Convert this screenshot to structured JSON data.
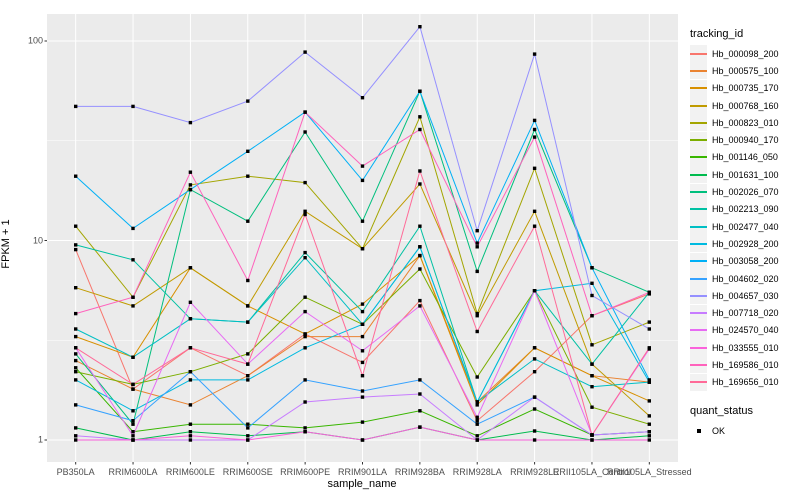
{
  "figure": {
    "background": "#FFFFFF",
    "panel_background": "#EBEBEB",
    "grid_color": "#FFFFFF",
    "tick_color": "#333333",
    "tick_label_color": "#4D4D4D"
  },
  "axes": {
    "y": {
      "title": "FPKM + 1",
      "scale": "log10",
      "tick_labels": [
        "100",
        "10",
        "1"
      ],
      "tick_values": [
        100,
        10,
        1
      ],
      "minor_tick_values": [
        31.62,
        3.162
      ]
    },
    "x": {
      "title": "sample_name"
    }
  },
  "legend": {
    "tracking_id_title": "tracking_id",
    "quant_status_title": "quant_status",
    "quant_status_items": [
      {
        "label": "OK",
        "marker": "black-square"
      }
    ]
  },
  "chart_data": {
    "type": "line",
    "title": "",
    "xlabel": "sample_name",
    "ylabel": "FPKM + 1",
    "y_scale": "log10",
    "ylim": [
      1,
      130
    ],
    "grid": "on",
    "legend_position": "right",
    "point_marker": {
      "shape": "square",
      "color": "#000000"
    },
    "x_categories": [
      "PB350LA",
      "RRIM600LA",
      "RRIM600LE",
      "RRIM600SE",
      "RRIM600PE",
      "RRIM901LA",
      "RRIM928BA",
      "RRIM928LA",
      "RRIM928LE",
      "RRII105LA_Control",
      "RRII105LA_Stressed"
    ],
    "series": [
      {
        "name": "Hb_000098_200",
        "color": "#F8766D",
        "values": [
          9.0,
          1.8,
          2.9,
          2.1,
          3.4,
          2.45,
          5.0,
          1.25,
          2.2,
          4.2,
          5.4
        ]
      },
      {
        "name": "Hb_000575_100",
        "color": "#EA8331",
        "values": [
          2.5,
          1.8,
          1.5,
          2.1,
          3.3,
          3.3,
          8.4,
          1.55,
          2.9,
          2.1,
          1.95
        ]
      },
      {
        "name": "Hb_000735_170",
        "color": "#D89000",
        "values": [
          3.3,
          2.6,
          7.3,
          4.7,
          3.4,
          4.8,
          8.4,
          1.5,
          2.9,
          2.1,
          1.57
        ]
      },
      {
        "name": "Hb_000768_160",
        "color": "#C09B00",
        "values": [
          5.8,
          4.7,
          7.3,
          4.7,
          14.0,
          9.1,
          19.2,
          4.2,
          14.0,
          2.4,
          1.32
        ]
      },
      {
        "name": "Hb_000823_010",
        "color": "#A3A500",
        "values": [
          11.8,
          5.2,
          19.0,
          21.0,
          19.5,
          9.1,
          41.7,
          4.3,
          23.0,
          3.0,
          3.9
        ]
      },
      {
        "name": "Hb_000940_170",
        "color": "#7CAE00",
        "values": [
          2.2,
          1.9,
          2.2,
          2.7,
          5.2,
          3.8,
          7.2,
          2.07,
          5.6,
          1.46,
          1.2
        ]
      },
      {
        "name": "Hb_001146_050",
        "color": "#39B600",
        "values": [
          2.3,
          1.1,
          1.2,
          1.2,
          1.15,
          1.23,
          1.4,
          1.05,
          1.43,
          1.06,
          1.1
        ]
      },
      {
        "name": "Hb_001631_100",
        "color": "#00BB4E",
        "values": [
          1.15,
          1.0,
          1.1,
          1.05,
          1.1,
          1.0,
          1.16,
          1.0,
          1.11,
          1.0,
          1.05
        ]
      },
      {
        "name": "Hb_002026_070",
        "color": "#00BF7D",
        "values": [
          2.7,
          1.2,
          18.0,
          12.5,
          35.0,
          12.5,
          56.0,
          7.0,
          36.0,
          7.3,
          5.5
        ]
      },
      {
        "name": "Hb_002213_090",
        "color": "#00C1A3",
        "values": [
          9.5,
          8.0,
          4.05,
          3.9,
          8.7,
          4.4,
          11.8,
          1.55,
          5.6,
          2.4,
          5.5
        ]
      },
      {
        "name": "Hb_002477_040",
        "color": "#00BFC4",
        "values": [
          3.6,
          2.6,
          4.05,
          3.9,
          8.2,
          3.8,
          9.3,
          1.55,
          2.55,
          1.85,
          1.95
        ]
      },
      {
        "name": "Hb_002928_200",
        "color": "#00BAE0",
        "values": [
          2.0,
          1.4,
          2.0,
          2.0,
          2.9,
          3.8,
          9.3,
          1.55,
          5.6,
          6.1,
          1.95
        ]
      },
      {
        "name": "Hb_003058_200",
        "color": "#00B0F6",
        "values": [
          21.0,
          11.5,
          18.0,
          28.0,
          44.0,
          20.0,
          56.0,
          9.7,
          40.0,
          7.3,
          2.0
        ]
      },
      {
        "name": "Hb_004602_020",
        "color": "#35A2FF",
        "values": [
          1.5,
          1.25,
          2.2,
          1.15,
          2.0,
          1.76,
          2.0,
          1.2,
          1.64,
          1.06,
          1.1
        ]
      },
      {
        "name": "Hb_004657_030",
        "color": "#9590FF",
        "values": [
          47.0,
          47.0,
          39.0,
          50.0,
          88.0,
          52.0,
          118.0,
          11.2,
          86.0,
          5.3,
          3.6
        ]
      },
      {
        "name": "Hb_007718_020",
        "color": "#C77CFF",
        "values": [
          1.05,
          1.0,
          1.0,
          1.0,
          1.55,
          1.64,
          1.7,
          1.0,
          1.64,
          1.06,
          1.1
        ]
      },
      {
        "name": "Hb_024570_040",
        "color": "#E76BF3",
        "values": [
          2.9,
          1.05,
          4.9,
          2.4,
          4.4,
          2.8,
          4.7,
          1.3,
          5.6,
          1.06,
          2.86
        ]
      },
      {
        "name": "Hb_033555_010",
        "color": "#FA62DB",
        "values": [
          1.0,
          1.0,
          1.05,
          1.0,
          1.1,
          1.0,
          1.16,
          1.0,
          1.0,
          1.0,
          1.0
        ]
      },
      {
        "name": "Hb_169586_010",
        "color": "#FF62BC",
        "values": [
          4.3,
          5.2,
          22.0,
          6.3,
          44.0,
          23.6,
          36.0,
          9.3,
          33.0,
          4.2,
          5.5
        ]
      },
      {
        "name": "Hb_169656_010",
        "color": "#FF6A98",
        "values": [
          2.9,
          1.9,
          2.9,
          2.4,
          13.5,
          2.1,
          22.3,
          3.5,
          11.8,
          1.06,
          2.9
        ]
      }
    ]
  }
}
